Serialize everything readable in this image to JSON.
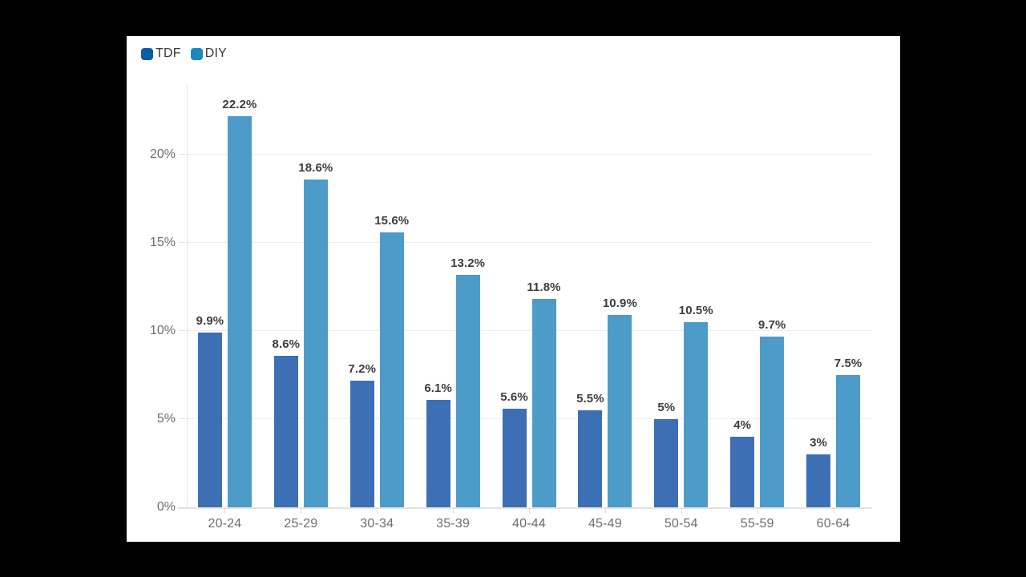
{
  "colors": {
    "page_background": "#000000",
    "panel_background": "#ffffff",
    "tdf_bar": "#3d6fb5",
    "diy_bar": "#4d9bc9",
    "tdf_legend": "#0b5ba8",
    "diy_legend": "#1b87c0",
    "value_label": "#3d3d3d",
    "axis_label": "#6e6e73",
    "gridline": "#efefef"
  },
  "chart_data": {
    "type": "bar",
    "title": "",
    "xlabel": "",
    "ylabel": "",
    "categories": [
      "20-24",
      "25-29",
      "30-34",
      "35-39",
      "40-44",
      "45-49",
      "50-54",
      "55-59",
      "60-64"
    ],
    "series": [
      {
        "name": "TDF",
        "bar_color": "#3d6fb5",
        "legend_color": "#0b5ba8",
        "values": [
          9.9,
          8.6,
          7.2,
          6.1,
          5.6,
          5.5,
          5,
          4,
          3
        ],
        "labels": [
          "9.9%",
          "8.6%",
          "7.2%",
          "6.1%",
          "5.6%",
          "5.5%",
          "5%",
          "4%",
          "3%"
        ]
      },
      {
        "name": "DIY",
        "bar_color": "#4d9bc9",
        "legend_color": "#1b87c0",
        "values": [
          22.2,
          18.6,
          15.6,
          13.2,
          11.8,
          10.9,
          10.5,
          9.7,
          7.5
        ],
        "labels": [
          "22.2%",
          "18.6%",
          "15.6%",
          "13.2%",
          "11.8%",
          "10.9%",
          "10.5%",
          "9.7%",
          "7.5%"
        ]
      }
    ],
    "y_ticks": [
      {
        "pct": 0,
        "label": "0%"
      },
      {
        "pct": 5,
        "label": "5%"
      },
      {
        "pct": 10,
        "label": "10%"
      },
      {
        "pct": 15,
        "label": "15%"
      },
      {
        "pct": 20,
        "label": "20%"
      }
    ],
    "ylim": [
      0,
      24
    ],
    "grid": true,
    "legend_position": "top-left"
  }
}
